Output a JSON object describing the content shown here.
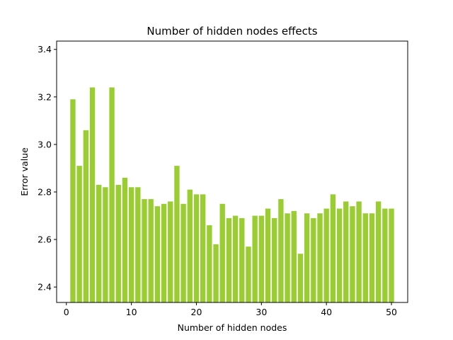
{
  "chart_data": {
    "type": "bar",
    "title": "Number of hidden nodes effects",
    "xlabel": "Number of hidden nodes",
    "ylabel": "Error value",
    "x": [
      1,
      2,
      3,
      4,
      5,
      6,
      7,
      8,
      9,
      10,
      11,
      12,
      13,
      14,
      15,
      16,
      17,
      18,
      19,
      20,
      21,
      22,
      23,
      24,
      25,
      26,
      27,
      28,
      29,
      30,
      31,
      32,
      33,
      34,
      35,
      36,
      37,
      38,
      39,
      40,
      41,
      42,
      43,
      44,
      45,
      46,
      47,
      48,
      49,
      50
    ],
    "values": [
      3.19,
      2.91,
      3.06,
      3.24,
      2.83,
      2.82,
      3.24,
      2.83,
      2.86,
      2.82,
      2.82,
      2.77,
      2.77,
      2.74,
      2.75,
      2.76,
      2.91,
      2.75,
      2.81,
      2.79,
      2.79,
      2.66,
      2.58,
      2.75,
      2.69,
      2.7,
      2.69,
      2.57,
      2.7,
      2.7,
      2.73,
      2.69,
      2.77,
      2.71,
      2.72,
      2.54,
      2.71,
      2.69,
      2.71,
      2.73,
      2.79,
      2.73,
      2.76,
      2.74,
      2.76,
      2.71,
      2.71,
      2.76,
      2.73,
      2.73
    ],
    "xlim": [
      -1.5,
      52.5
    ],
    "ylim": [
      2.335,
      3.435
    ],
    "xticks": [
      0,
      10,
      20,
      30,
      40,
      50
    ],
    "yticks": [
      2.4,
      2.6,
      2.8,
      3.0,
      3.2,
      3.4
    ],
    "ytick_labels": [
      "2.4",
      "2.6",
      "2.8",
      "3.0",
      "3.2",
      "3.4"
    ],
    "bar_color": "#9acd32",
    "grid": false,
    "legend": "none"
  }
}
